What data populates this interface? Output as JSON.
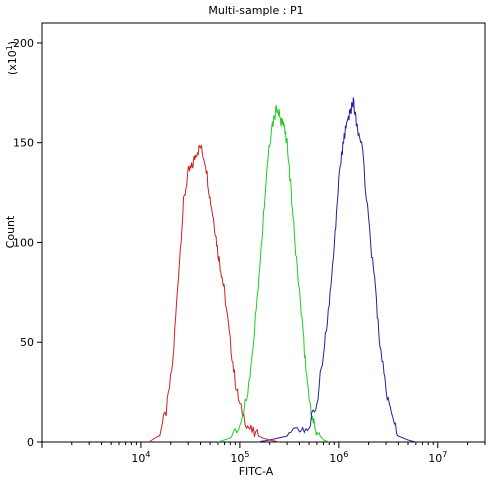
{
  "chart_data": {
    "type": "line",
    "title": "Multi-sample : P1",
    "xlabel": "FITC-A",
    "ylabel": "Count",
    "y_multiplier_label": "(x10",
    "y_multiplier_exp": "1",
    "x_scale": "log",
    "xlim": [
      1000,
      30000000
    ],
    "ylim": [
      0,
      210
    ],
    "x_ticks": [
      {
        "value": 10000,
        "base": "10",
        "exp": "4"
      },
      {
        "value": 100000,
        "base": "10",
        "exp": "5"
      },
      {
        "value": 1000000,
        "base": "10",
        "exp": "6"
      },
      {
        "value": 10000000,
        "base": "10",
        "exp": "7"
      }
    ],
    "y_ticks": [
      0,
      50,
      100,
      150,
      200
    ],
    "grid": false,
    "series": [
      {
        "color": "#cc2222",
        "x": [
          12000,
          15000,
          18000,
          21000,
          24000,
          27000,
          30000,
          33000,
          36000,
          40000,
          45000,
          50000,
          55000,
          60000,
          65000,
          70000,
          80000,
          90000,
          100000,
          120000,
          140000,
          170000,
          200000,
          250000
        ],
        "y": [
          0,
          3,
          15,
          40,
          85,
          120,
          135,
          138,
          145,
          148,
          140,
          122,
          110,
          95,
          85,
          75,
          50,
          30,
          18,
          8,
          4,
          2,
          1,
          0
        ]
      },
      {
        "color": "#22cc22",
        "x": [
          60000,
          80000,
          100000,
          120000,
          140000,
          160000,
          180000,
          200000,
          220000,
          240000,
          260000,
          280000,
          300000,
          330000,
          360000,
          400000,
          450000,
          500000,
          550000,
          600000,
          700000,
          800000
        ],
        "y": [
          0,
          2,
          8,
          25,
          55,
          90,
          125,
          150,
          162,
          168,
          160,
          158,
          150,
          125,
          100,
          75,
          45,
          22,
          10,
          5,
          1,
          0
        ]
      },
      {
        "color": "#22229a",
        "x": [
          150000,
          200000,
          300000,
          400000,
          500000,
          600000,
          700000,
          800000,
          900000,
          1000000,
          1100000,
          1200000,
          1300000,
          1400000,
          1500000,
          1700000,
          2000000,
          2300000,
          2600000,
          3000000,
          3500000,
          4000000,
          5000000,
          6000000
        ],
        "y": [
          0,
          1,
          3,
          5,
          8,
          20,
          45,
          70,
          100,
          130,
          150,
          160,
          165,
          172,
          160,
          150,
          110,
          80,
          50,
          25,
          10,
          3,
          1,
          0
        ]
      }
    ]
  }
}
